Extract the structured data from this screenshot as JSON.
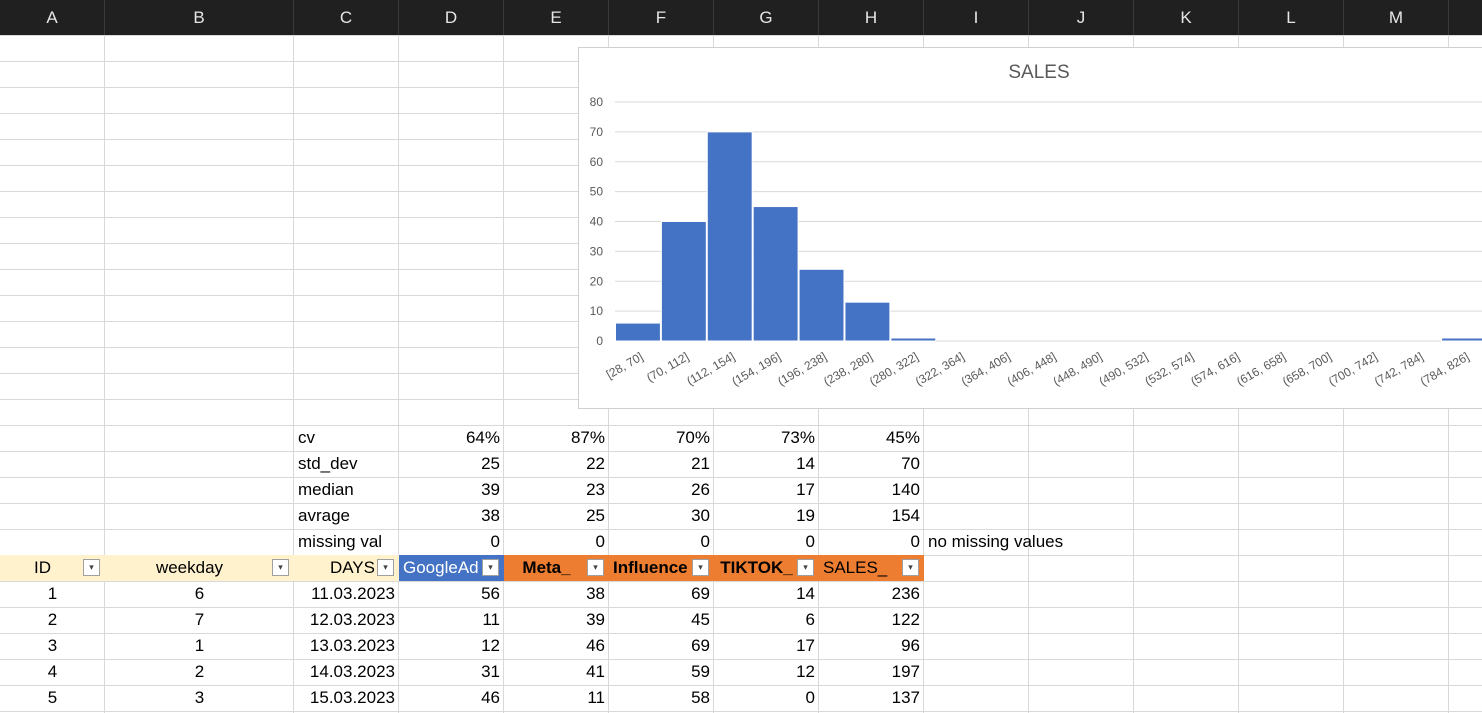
{
  "columns": [
    "A",
    "B",
    "C",
    "D",
    "E",
    "F",
    "G",
    "H",
    "I",
    "J",
    "K",
    "L",
    "M"
  ],
  "stats": [
    {
      "label": "cv",
      "values": [
        "64%",
        "87%",
        "70%",
        "73%",
        "45%"
      ]
    },
    {
      "label": "std_dev",
      "values": [
        "25",
        "22",
        "21",
        "14",
        "70"
      ]
    },
    {
      "label": "median",
      "values": [
        "39",
        "23",
        "26",
        "17",
        "140"
      ]
    },
    {
      "label": "avrage",
      "values": [
        "38",
        "25",
        "30",
        "19",
        "154"
      ]
    },
    {
      "label": "missing val",
      "values": [
        "0",
        "0",
        "0",
        "0",
        "0"
      ],
      "note": "no missing values"
    }
  ],
  "headers": [
    "ID",
    "weekday",
    "DAYS",
    "GoogleAd",
    "Meta_",
    "Influence",
    "TIKTOK_",
    "SALES_"
  ],
  "colors": {
    "header_light": "#fff2cc",
    "header_blue": "#4472c4",
    "header_orange": "#ed7d31",
    "bar": "#4472c4"
  },
  "rows": [
    [
      "1",
      "6",
      "11.03.2023",
      "56",
      "38",
      "69",
      "14",
      "236"
    ],
    [
      "2",
      "7",
      "12.03.2023",
      "11",
      "39",
      "45",
      "6",
      "122"
    ],
    [
      "3",
      "1",
      "13.03.2023",
      "12",
      "46",
      "69",
      "17",
      "96"
    ],
    [
      "4",
      "2",
      "14.03.2023",
      "31",
      "41",
      "59",
      "12",
      "197"
    ],
    [
      "5",
      "3",
      "15.03.2023",
      "46",
      "11",
      "58",
      "0",
      "137"
    ]
  ],
  "chart_data": {
    "type": "bar",
    "title": "SALES",
    "categories": [
      "[28, 70]",
      "(70, 112]",
      "(112, 154]",
      "(154, 196]",
      "(196, 238]",
      "(238, 280]",
      "(280, 322]",
      "(322, 364]",
      "(364, 406]",
      "(406, 448]",
      "(448, 490]",
      "(490, 532]",
      "(532, 574]",
      "(574, 616]",
      "(616, 658]",
      "(658, 700]",
      "(700, 742]",
      "(742, 784]",
      "(784, 826]"
    ],
    "values": [
      6,
      40,
      70,
      45,
      24,
      13,
      1,
      0,
      0,
      0,
      0,
      0,
      0,
      0,
      0,
      0,
      0,
      0,
      1
    ],
    "ylim": [
      0,
      80
    ],
    "yticks": [
      0,
      10,
      20,
      30,
      40,
      50,
      60,
      70,
      80
    ],
    "grid": true,
    "xlabel": "",
    "ylabel": ""
  }
}
